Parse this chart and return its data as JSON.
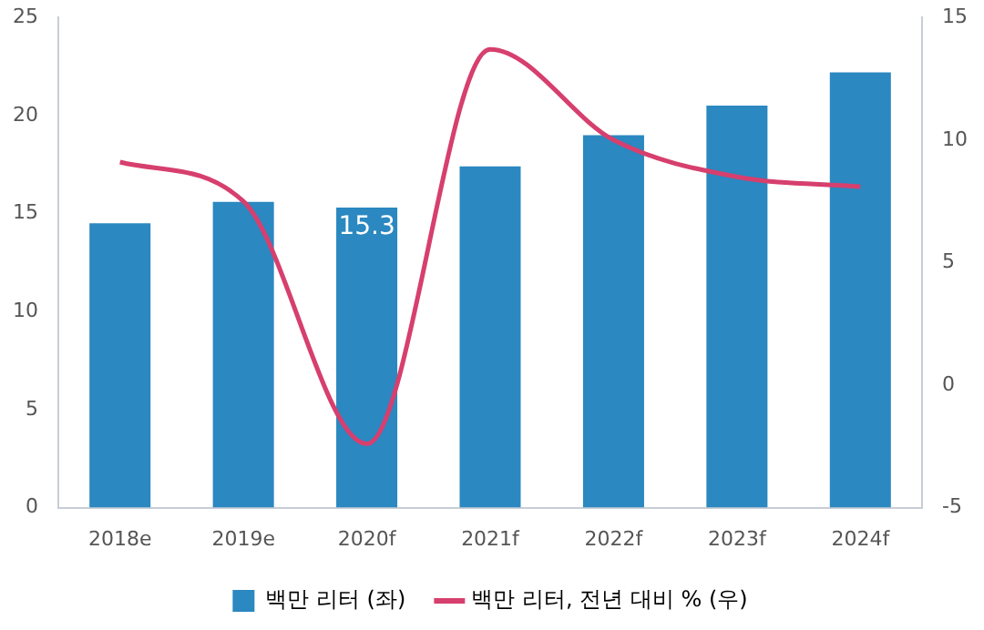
{
  "chart_data": {
    "type": "bar",
    "categories": [
      "2018e",
      "2019e",
      "2020f",
      "2021f",
      "2022f",
      "2023f",
      "2024f"
    ],
    "series": [
      {
        "name": "백만 리터 (좌)",
        "color": "#2b88c0",
        "values": [
          14.5,
          15.6,
          15.3,
          17.4,
          19.0,
          20.5,
          22.2
        ],
        "value_labels": [
          null,
          null,
          "15.3",
          null,
          null,
          null,
          null
        ]
      },
      {
        "name": "백만 리터, 전년 대비 % (우)",
        "type": "line",
        "axis": "y2",
        "color": "#d63f6e",
        "values": [
          9.1,
          7.5,
          -2.4,
          13.7,
          10.0,
          8.5,
          8.1
        ],
        "marker": "none"
      }
    ],
    "ylim": [
      0,
      25
    ],
    "yticks": [
      0,
      5,
      10,
      15,
      20,
      25
    ],
    "y2lim": [
      -5,
      15
    ],
    "y2ticks": [
      -5,
      0,
      5,
      10,
      15
    ],
    "grid": false,
    "legend": "bottom"
  }
}
